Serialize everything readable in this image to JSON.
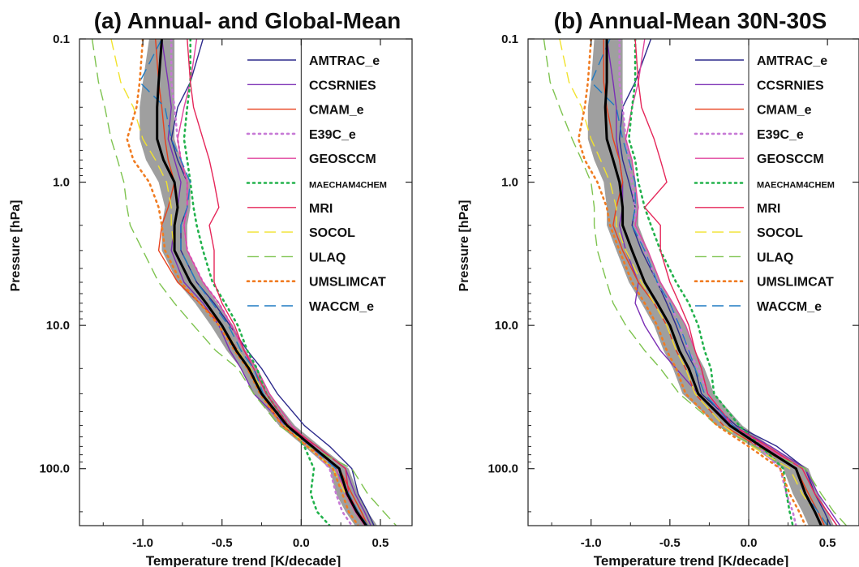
{
  "chart_data": [
    {
      "type": "line",
      "title": "(a) Annual- and Global-Mean",
      "xlabel": "Temperature trend [K/decade]",
      "ylabel": "Pressure [hPa]",
      "xlim": [
        -1.4,
        0.7
      ],
      "ylim": [
        250.0,
        0.1
      ],
      "y_scale": "log",
      "x_ticks": [
        "-1.0",
        "-0.5",
        "0.0",
        "0.5"
      ],
      "x_tick_values": [
        -1.0,
        -0.5,
        0.0,
        0.5
      ],
      "y_ticks": [
        "0.1",
        "1.0",
        "10.0",
        "100.0"
      ],
      "y_tick_values": [
        0.1,
        1.0,
        10.0,
        100.0
      ],
      "zero_line": true,
      "legend_position": "top-right",
      "levels": [
        0.1,
        0.2,
        0.3,
        0.5,
        0.7,
        1.0,
        1.5,
        2.0,
        3.0,
        5.0,
        7.0,
        10.0,
        15.0,
        20.0,
        30.0,
        50.0,
        70.0,
        100.0,
        150.0,
        200.0,
        250.0
      ],
      "series": [
        {
          "name": "AMTRAC_e",
          "color": "#2d2a8c",
          "dash": "solid",
          "values": [
            -0.62,
            -0.7,
            -0.78,
            -0.82,
            -0.78,
            -0.72,
            -0.72,
            -0.76,
            -0.76,
            -0.66,
            -0.55,
            -0.45,
            -0.34,
            -0.25,
            -0.15,
            0.02,
            0.18,
            0.32,
            0.36,
            0.42,
            0.46
          ]
        },
        {
          "name": "CCSRNIES",
          "color": "#7b2fb5",
          "dash": "solid",
          "values": [
            -0.88,
            -0.84,
            -0.82,
            -0.84,
            -0.8,
            -0.76,
            -0.78,
            -0.8,
            -0.82,
            -0.74,
            -0.62,
            -0.52,
            -0.45,
            -0.38,
            -0.3,
            -0.1,
            0.1,
            0.28,
            0.34,
            0.4,
            0.44
          ]
        },
        {
          "name": "CMAM_e",
          "color": "#e8401c",
          "dash": "solid",
          "values": [
            -0.92,
            -0.9,
            -0.88,
            -0.86,
            -0.84,
            -0.8,
            -0.84,
            -0.88,
            -0.9,
            -0.78,
            -0.64,
            -0.5,
            -0.4,
            -0.34,
            -0.25,
            -0.12,
            0.05,
            0.24,
            0.32,
            0.38,
            0.42
          ]
        },
        {
          "name": "E39C_e",
          "color": "#c77ad6",
          "dash": "dot",
          "values": [
            -0.82,
            -0.82,
            -0.8,
            -0.78,
            -0.76,
            -0.72,
            -0.72,
            -0.74,
            -0.72,
            -0.62,
            -0.52,
            -0.44,
            -0.36,
            -0.3,
            -0.22,
            -0.08,
            0.05,
            0.18,
            0.22,
            0.26,
            0.32
          ]
        },
        {
          "name": "GEOSCCM",
          "color": "#e0449e",
          "dash": "solid",
          "values": [
            -0.66,
            -0.7,
            -0.74,
            -0.78,
            -0.76,
            -0.72,
            -0.72,
            -0.74,
            -0.72,
            -0.62,
            -0.52,
            -0.44,
            -0.36,
            -0.28,
            -0.2,
            -0.06,
            0.08,
            0.22,
            0.28,
            0.34,
            0.4
          ]
        },
        {
          "name": "MAECHAM4CHEM",
          "color": "#22b24c",
          "dash": "dot",
          "values": [
            -0.7,
            -0.7,
            -0.72,
            -0.74,
            -0.72,
            -0.7,
            -0.68,
            -0.66,
            -0.62,
            -0.56,
            -0.48,
            -0.4,
            -0.34,
            -0.28,
            -0.22,
            -0.08,
            0.02,
            0.08,
            0.06,
            0.1,
            0.18
          ]
        },
        {
          "name": "MRI",
          "color": "#e52659",
          "dash": "solid",
          "values": [
            -0.72,
            -0.7,
            -0.68,
            -0.62,
            -0.58,
            -0.55,
            -0.52,
            -0.58,
            -0.55,
            -0.55,
            -0.5,
            -0.42,
            -0.36,
            -0.3,
            -0.22,
            -0.08,
            0.1,
            0.28,
            0.3,
            0.36,
            0.42
          ]
        },
        {
          "name": "SOCOL",
          "color": "#f1e22d",
          "dash": "dash",
          "values": [
            -1.2,
            -1.14,
            -1.06,
            -1.0,
            -0.92,
            -0.85,
            -0.82,
            -0.82,
            -0.8,
            -0.7,
            -0.6,
            -0.5,
            -0.4,
            -0.32,
            -0.24,
            -0.1,
            0.04,
            0.2,
            0.28,
            0.36,
            0.4
          ]
        },
        {
          "name": "ULAQ",
          "color": "#7ec34f",
          "dash": "dash",
          "values": [
            -1.32,
            -1.28,
            -1.24,
            -1.2,
            -1.16,
            -1.12,
            -1.1,
            -1.08,
            -1.0,
            -0.9,
            -0.8,
            -0.68,
            -0.54,
            -0.4,
            -0.3,
            -0.14,
            0.05,
            0.32,
            0.42,
            0.52,
            0.6
          ]
        },
        {
          "name": "UMSLIMCAT",
          "color": "#f07c22",
          "dash": "dot",
          "values": [
            -1.0,
            -1.02,
            -1.04,
            -1.1,
            -1.06,
            -0.96,
            -0.9,
            -0.88,
            -0.86,
            -0.76,
            -0.64,
            -0.52,
            -0.42,
            -0.34,
            -0.26,
            -0.12,
            0.04,
            0.2,
            0.26,
            0.3,
            0.36
          ]
        },
        {
          "name": "WACCM_e",
          "color": "#1f7ac2",
          "dash": "dash",
          "values": [
            -0.88,
            -1.02,
            -0.86,
            -0.82,
            -0.76,
            -0.7,
            -0.72,
            -0.76,
            -0.76,
            -0.66,
            -0.56,
            -0.46,
            -0.38,
            -0.3,
            -0.24,
            -0.1,
            0.06,
            0.22,
            0.3,
            0.36,
            0.42
          ]
        },
        {
          "name": "",
          "color": "#000000",
          "dash": "solid",
          "role": "multi-model mean",
          "values": [
            -0.88,
            -0.9,
            -0.91,
            -0.91,
            -0.87,
            -0.8,
            -0.78,
            -0.8,
            -0.8,
            -0.7,
            -0.6,
            -0.5,
            -0.41,
            -0.33,
            -0.25,
            -0.09,
            0.07,
            0.24,
            0.29,
            0.35,
            0.41
          ]
        }
      ],
      "shading": {
        "color": "#9a9a9a",
        "lower": [
          -0.96,
          -1.0,
          -1.02,
          -1.02,
          -0.98,
          -0.9,
          -0.86,
          -0.88,
          -0.88,
          -0.78,
          -0.67,
          -0.57,
          -0.47,
          -0.38,
          -0.3,
          -0.14,
          0.02,
          0.18,
          0.22,
          0.28,
          0.34
        ],
        "upper": [
          -0.8,
          -0.8,
          -0.8,
          -0.8,
          -0.76,
          -0.7,
          -0.7,
          -0.72,
          -0.72,
          -0.62,
          -0.53,
          -0.43,
          -0.35,
          -0.28,
          -0.2,
          -0.04,
          0.12,
          0.3,
          0.36,
          0.42,
          0.48
        ]
      }
    },
    {
      "type": "line",
      "title": "(b) Annual-Mean 30N-30S",
      "xlabel": "Temperature trend [K/decade]",
      "ylabel": "Pressure [hPa]",
      "xlim": [
        -1.4,
        0.7
      ],
      "ylim": [
        250.0,
        0.1
      ],
      "y_scale": "log",
      "x_ticks": [
        "-1.0",
        "-0.5",
        "0.0",
        "0.5"
      ],
      "x_tick_values": [
        -1.0,
        -0.5,
        0.0,
        0.5
      ],
      "y_ticks": [
        "0.1",
        "1.0",
        "10.0",
        "100.0"
      ],
      "y_tick_values": [
        0.1,
        1.0,
        10.0,
        100.0
      ],
      "zero_line": true,
      "legend_position": "top-right",
      "levels": [
        0.1,
        0.2,
        0.3,
        0.5,
        0.7,
        1.0,
        1.5,
        2.0,
        3.0,
        5.0,
        7.0,
        10.0,
        15.0,
        20.0,
        30.0,
        50.0,
        70.0,
        100.0,
        150.0,
        200.0,
        250.0
      ],
      "series": [
        {
          "name": "AMTRAC_e",
          "color": "#2d2a8c",
          "dash": "solid",
          "values": [
            -0.62,
            -0.72,
            -0.8,
            -0.82,
            -0.8,
            -0.76,
            -0.72,
            -0.74,
            -0.68,
            -0.58,
            -0.52,
            -0.46,
            -0.4,
            -0.34,
            -0.3,
            -0.08,
            0.18,
            0.36,
            0.42,
            0.48,
            0.52
          ]
        },
        {
          "name": "CCSRNIES",
          "color": "#7b2fb5",
          "dash": "solid",
          "values": [
            -0.9,
            -0.86,
            -0.84,
            -0.84,
            -0.82,
            -0.8,
            -0.8,
            -0.82,
            -0.78,
            -0.7,
            -0.72,
            -0.66,
            -0.56,
            -0.46,
            -0.32,
            -0.1,
            0.14,
            0.36,
            0.44,
            0.52,
            0.58
          ]
        },
        {
          "name": "CMAM_e",
          "color": "#e8401c",
          "dash": "solid",
          "values": [
            -0.92,
            -0.92,
            -0.9,
            -0.86,
            -0.82,
            -0.8,
            -0.84,
            -0.86,
            -0.8,
            -0.7,
            -0.6,
            -0.52,
            -0.46,
            -0.4,
            -0.34,
            -0.16,
            0.06,
            0.3,
            0.38,
            0.44,
            0.48
          ]
        },
        {
          "name": "E39C_e",
          "color": "#c77ad6",
          "dash": "dot",
          "values": [
            -0.82,
            -0.82,
            -0.8,
            -0.78,
            -0.76,
            -0.74,
            -0.72,
            -0.72,
            -0.66,
            -0.58,
            -0.5,
            -0.44,
            -0.38,
            -0.32,
            -0.26,
            -0.1,
            0.06,
            0.2,
            0.24,
            0.28,
            0.3
          ]
        },
        {
          "name": "GEOSCCM",
          "color": "#e0449e",
          "dash": "solid",
          "values": [
            -0.66,
            -0.7,
            -0.74,
            -0.78,
            -0.74,
            -0.72,
            -0.7,
            -0.72,
            -0.64,
            -0.56,
            -0.48,
            -0.4,
            -0.34,
            -0.3,
            -0.26,
            -0.1,
            0.1,
            0.34,
            0.42,
            0.5,
            0.56
          ]
        },
        {
          "name": "MAECHAM4CHEM",
          "color": "#22b24c",
          "dash": "dot",
          "values": [
            -0.72,
            -0.72,
            -0.74,
            -0.76,
            -0.72,
            -0.7,
            -0.66,
            -0.62,
            -0.56,
            -0.46,
            -0.38,
            -0.32,
            -0.28,
            -0.24,
            -0.22,
            -0.06,
            0.08,
            0.22,
            0.24,
            0.26,
            0.28
          ]
        },
        {
          "name": "MRI",
          "color": "#e52659",
          "dash": "solid",
          "values": [
            -0.72,
            -0.7,
            -0.68,
            -0.6,
            -0.56,
            -0.52,
            -0.66,
            -0.56,
            -0.56,
            -0.5,
            -0.44,
            -0.38,
            -0.34,
            -0.3,
            -0.26,
            -0.1,
            0.12,
            0.34,
            0.42,
            0.5,
            0.56
          ]
        },
        {
          "name": "SOCOL",
          "color": "#f1e22d",
          "dash": "dash",
          "values": [
            -1.2,
            -1.14,
            -1.06,
            -1.0,
            -0.94,
            -0.88,
            -0.84,
            -0.84,
            -0.78,
            -0.68,
            -0.6,
            -0.52,
            -0.46,
            -0.4,
            -0.34,
            -0.16,
            0.02,
            0.26,
            0.34,
            0.42,
            0.46
          ]
        },
        {
          "name": "ULAQ",
          "color": "#7ec34f",
          "dash": "dash",
          "values": [
            -1.3,
            -1.26,
            -1.2,
            -1.12,
            -1.06,
            -1.0,
            -0.98,
            -0.98,
            -0.96,
            -0.9,
            -0.86,
            -0.78,
            -0.66,
            -0.56,
            -0.44,
            -0.2,
            0.04,
            0.36,
            0.46,
            0.54,
            0.62
          ]
        },
        {
          "name": "UMSLIMCAT",
          "color": "#f07c22",
          "dash": "dot",
          "values": [
            -1.0,
            -1.02,
            -1.04,
            -1.08,
            -1.04,
            -0.96,
            -0.9,
            -0.88,
            -0.82,
            -0.74,
            -0.66,
            -0.58,
            -0.52,
            -0.46,
            -0.4,
            -0.2,
            0.0,
            0.2,
            0.26,
            0.32,
            0.36
          ]
        },
        {
          "name": "WACCM_e",
          "color": "#1f7ac2",
          "dash": "dash",
          "values": [
            -0.88,
            -1.0,
            -0.84,
            -0.8,
            -0.76,
            -0.72,
            -0.72,
            -0.74,
            -0.66,
            -0.58,
            -0.5,
            -0.44,
            -0.38,
            -0.34,
            -0.28,
            -0.1,
            0.08,
            0.3,
            0.36,
            0.44,
            0.5
          ]
        },
        {
          "name": "",
          "color": "#000000",
          "dash": "solid",
          "role": "multi-model mean",
          "values": [
            -0.9,
            -0.9,
            -0.91,
            -0.9,
            -0.86,
            -0.82,
            -0.8,
            -0.8,
            -0.74,
            -0.66,
            -0.58,
            -0.5,
            -0.44,
            -0.38,
            -0.32,
            -0.12,
            0.08,
            0.3,
            0.36,
            0.42,
            0.46
          ]
        }
      ],
      "shading": {
        "color": "#9a9a9a",
        "lower": [
          -0.98,
          -1.0,
          -1.02,
          -1.02,
          -0.98,
          -0.92,
          -0.9,
          -0.9,
          -0.84,
          -0.76,
          -0.68,
          -0.6,
          -0.54,
          -0.48,
          -0.42,
          -0.2,
          0.02,
          0.22,
          0.28,
          0.34,
          0.38
        ],
        "upper": [
          -0.8,
          -0.8,
          -0.8,
          -0.78,
          -0.74,
          -0.72,
          -0.7,
          -0.7,
          -0.64,
          -0.56,
          -0.48,
          -0.4,
          -0.34,
          -0.28,
          -0.22,
          -0.04,
          0.14,
          0.38,
          0.44,
          0.5,
          0.54
        ]
      }
    }
  ]
}
